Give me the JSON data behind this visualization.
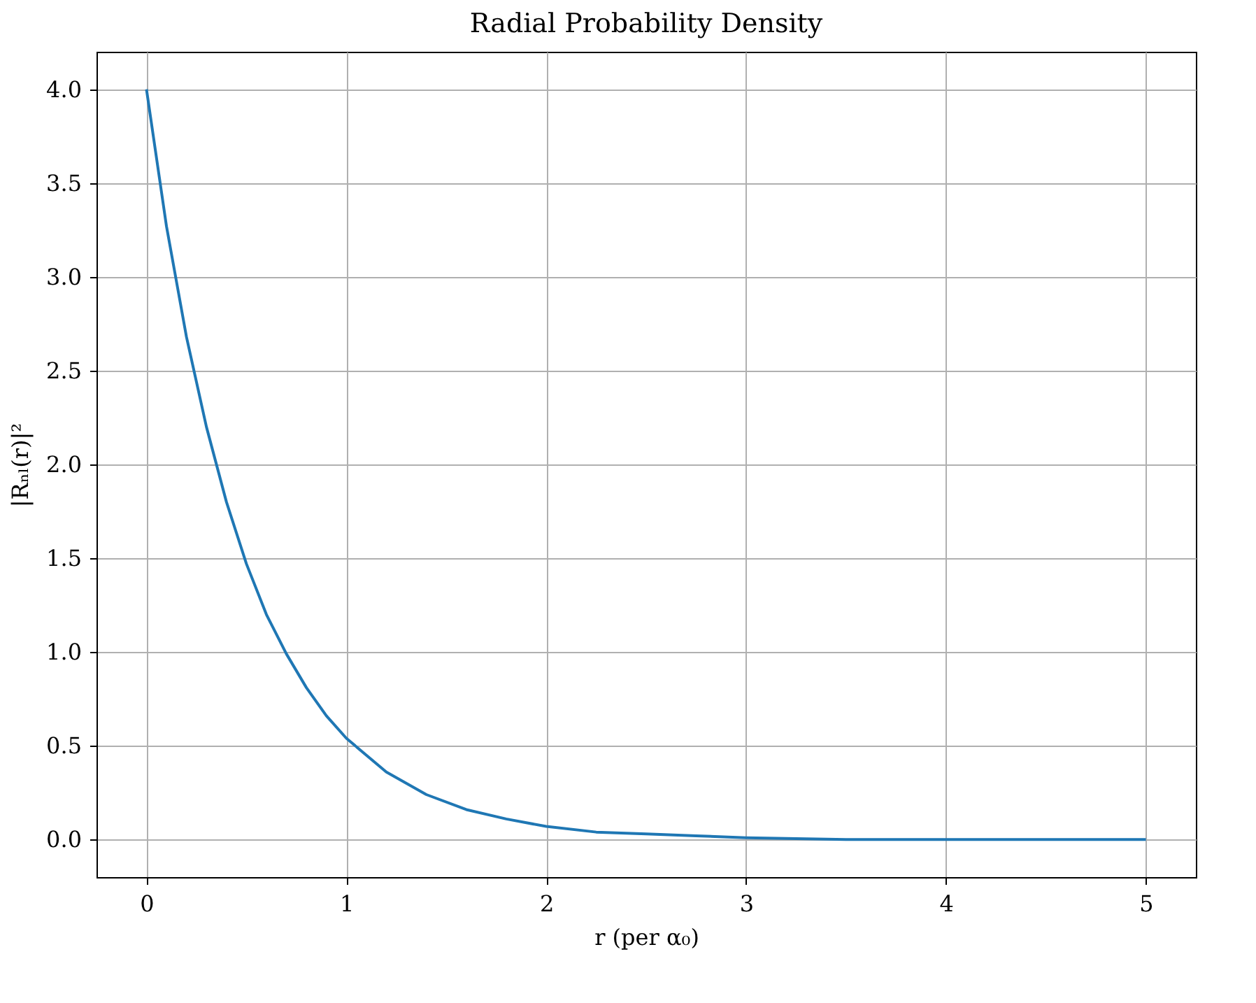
{
  "chart_data": {
    "type": "line",
    "title": "Radial Probability Density",
    "xlabel": "r (per α₀)",
    "ylabel": "|Rₙₗ(r)|²",
    "x": [
      0,
      0.1,
      0.2,
      0.3,
      0.4,
      0.5,
      0.6,
      0.7,
      0.8,
      0.9,
      1.0,
      1.2,
      1.4,
      1.6,
      1.8,
      2.0,
      2.25,
      2.5,
      2.75,
      3.0,
      3.5,
      4.0,
      4.5,
      5.0
    ],
    "series": [
      {
        "color": "#1f77b4",
        "values": [
          4.0,
          3.27,
          2.68,
          2.2,
          1.8,
          1.47,
          1.2,
          0.99,
          0.81,
          0.66,
          0.54,
          0.36,
          0.24,
          0.16,
          0.11,
          0.07,
          0.04,
          0.03,
          0.02,
          0.01,
          0.0,
          0.0,
          0.0,
          0.0
        ]
      }
    ],
    "xlim": [
      -0.25,
      5.25
    ],
    "xticks": [
      0,
      1,
      2,
      3,
      4,
      5
    ],
    "ylim": [
      -0.2,
      4.2
    ],
    "yticks": [
      {
        "value": 0,
        "label": "0.0"
      },
      {
        "value": 0.5,
        "label": "0.5"
      },
      {
        "value": 1,
        "label": "1.0"
      },
      {
        "value": 1.5,
        "label": "1.5"
      },
      {
        "value": 2,
        "label": "2.0"
      },
      {
        "value": 2.5,
        "label": "2.5"
      },
      {
        "value": 3,
        "label": "3.0"
      },
      {
        "value": 3.5,
        "label": "3.5"
      },
      {
        "value": 4,
        "label": "4.0"
      }
    ],
    "grid": true,
    "line_style": "solid"
  }
}
